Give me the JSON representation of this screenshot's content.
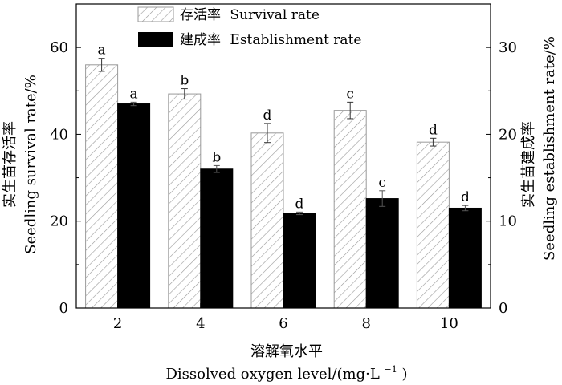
{
  "chart_data": {
    "type": "bar",
    "categories": [
      "2",
      "4",
      "6",
      "8",
      "10"
    ],
    "xlabel_cn": "溶解氧水平",
    "xlabel_en": "Dissolved oxygen level/(mg·L",
    "xlabel_en_sup": "−1",
    "xlabel_en_close": ")",
    "left_axis": {
      "label_cn": "实生苗存活率",
      "label_en": "Seedling survival rate/%",
      "ylim": [
        0,
        70
      ],
      "ticks": [
        0,
        20,
        40,
        60
      ]
    },
    "right_axis": {
      "label_cn": "实生苗建成率",
      "label_en": "Seedling establishment rate/%",
      "ylim": [
        0,
        35
      ],
      "ticks": [
        0,
        10,
        20,
        30
      ]
    },
    "series": [
      {
        "name": "存活率 Survival rate",
        "axis": "left",
        "pattern": "hatched",
        "values": [
          56,
          49.3,
          40.3,
          45.5,
          38.2
        ],
        "errors": [
          1.5,
          1.2,
          2.2,
          1.9,
          0.9
        ],
        "letters": [
          "a",
          "b",
          "d",
          "c",
          "d"
        ]
      },
      {
        "name": "建成率 Establishment rate",
        "axis": "right",
        "pattern": "solid",
        "values": [
          23.5,
          16,
          10.9,
          12.6,
          11.5
        ],
        "errors": [
          0.2,
          0.4,
          0.15,
          0.9,
          0.3
        ],
        "letters": [
          "a",
          "b",
          "d",
          "c",
          "d"
        ]
      }
    ],
    "legend": {
      "items": [
        {
          "cn": "存活率",
          "en": "Survival rate"
        },
        {
          "cn": "建成率",
          "en": "Establishment rate"
        }
      ],
      "position": "top-center"
    }
  }
}
